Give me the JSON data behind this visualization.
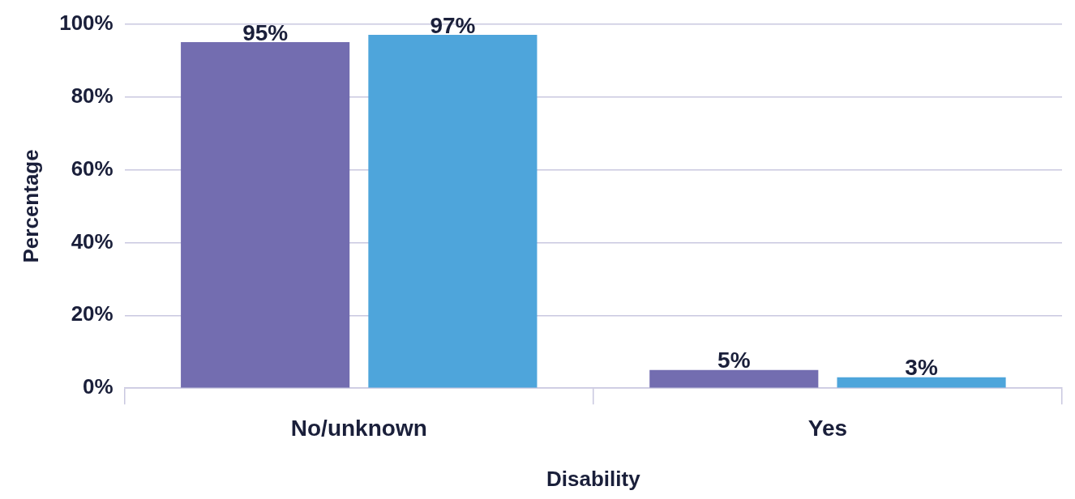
{
  "chart_data": {
    "type": "bar",
    "xlabel": "Disability",
    "ylabel": "Percentage",
    "categories": [
      "No/unknown",
      "Yes"
    ],
    "series": [
      {
        "color": "#736db0",
        "values": [
          95,
          5
        ],
        "value_labels": [
          "95%",
          "5%"
        ]
      },
      {
        "color": "#4ea5db",
        "values": [
          97,
          3
        ],
        "value_labels": [
          "97%",
          "3%"
        ]
      }
    ],
    "ylim": [
      0,
      100
    ],
    "yticks": [
      {
        "value": 0,
        "label": "0%"
      },
      {
        "value": 20,
        "label": "20%"
      },
      {
        "value": 40,
        "label": "40%"
      },
      {
        "value": 60,
        "label": "60%"
      },
      {
        "value": 80,
        "label": "80%"
      },
      {
        "value": 100,
        "label": "100%"
      }
    ],
    "grid": "y",
    "legend": false
  }
}
